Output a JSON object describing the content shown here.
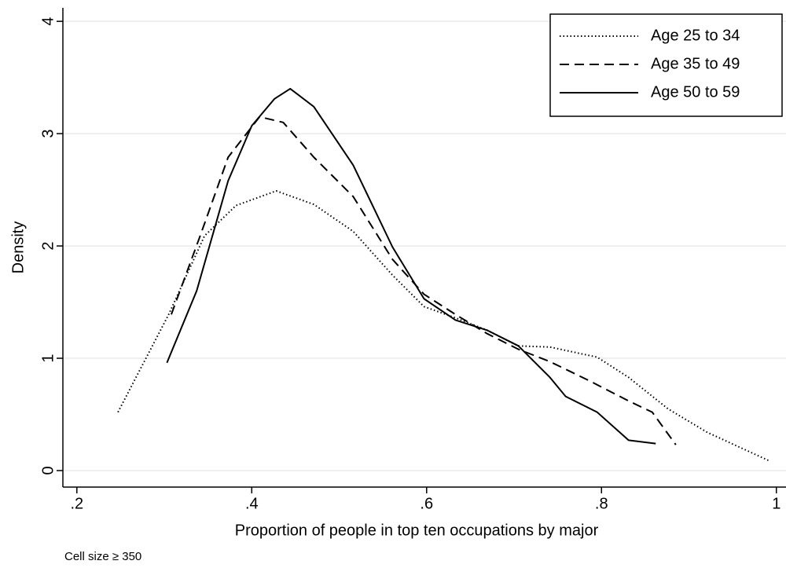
{
  "chart_data": {
    "type": "line",
    "xlabel": "Proportion of people in top ten occupations by major",
    "ylabel": "Density",
    "note": "Cell size ≥ 350",
    "xlim": [
      0.184,
      1.011
    ],
    "ylim": [
      -0.147,
      4.12
    ],
    "xticks": [
      {
        "value": 0.2,
        "label": ".2"
      },
      {
        "value": 0.4,
        "label": ".4"
      },
      {
        "value": 0.6,
        "label": ".6"
      },
      {
        "value": 0.8,
        "label": ".8"
      },
      1
    ],
    "yticks": [
      0,
      1,
      2,
      3,
      4
    ],
    "grid": true,
    "legend": "top-right",
    "series": [
      {
        "name": "Age 25 to 34",
        "color": "#000000",
        "linestyle": "dotted",
        "x": [
          0.247,
          0.305,
          0.346,
          0.382,
          0.428,
          0.471,
          0.516,
          0.561,
          0.597,
          0.633,
          0.669,
          0.705,
          0.741,
          0.795,
          0.831,
          0.876,
          0.921,
          0.991
        ],
        "values": [
          0.52,
          1.39,
          2.09,
          2.36,
          2.49,
          2.37,
          2.13,
          1.74,
          1.46,
          1.36,
          1.25,
          1.11,
          1.1,
          1.01,
          0.83,
          0.55,
          0.34,
          0.09
        ]
      },
      {
        "name": "Age 35 to 49",
        "color": "#000000",
        "linestyle": "dashed",
        "x": [
          0.308,
          0.341,
          0.373,
          0.409,
          0.436,
          0.471,
          0.516,
          0.561,
          0.597,
          0.633,
          0.669,
          0.705,
          0.741,
          0.786,
          0.831,
          0.858,
          0.885
        ],
        "values": [
          1.39,
          2.09,
          2.79,
          3.15,
          3.1,
          2.79,
          2.44,
          1.88,
          1.57,
          1.39,
          1.22,
          1.08,
          0.97,
          0.8,
          0.62,
          0.52,
          0.23
        ]
      },
      {
        "name": "Age 50 to 59",
        "color": "#000000",
        "linestyle": "solid",
        "x": [
          0.303,
          0.337,
          0.373,
          0.4,
          0.426,
          0.444,
          0.471,
          0.516,
          0.561,
          0.597,
          0.633,
          0.669,
          0.705,
          0.741,
          0.759,
          0.795,
          0.831,
          0.862
        ],
        "values": [
          0.96,
          1.6,
          2.58,
          3.07,
          3.31,
          3.4,
          3.24,
          2.72,
          1.99,
          1.53,
          1.34,
          1.25,
          1.11,
          0.83,
          0.66,
          0.52,
          0.27,
          0.24
        ]
      }
    ]
  }
}
